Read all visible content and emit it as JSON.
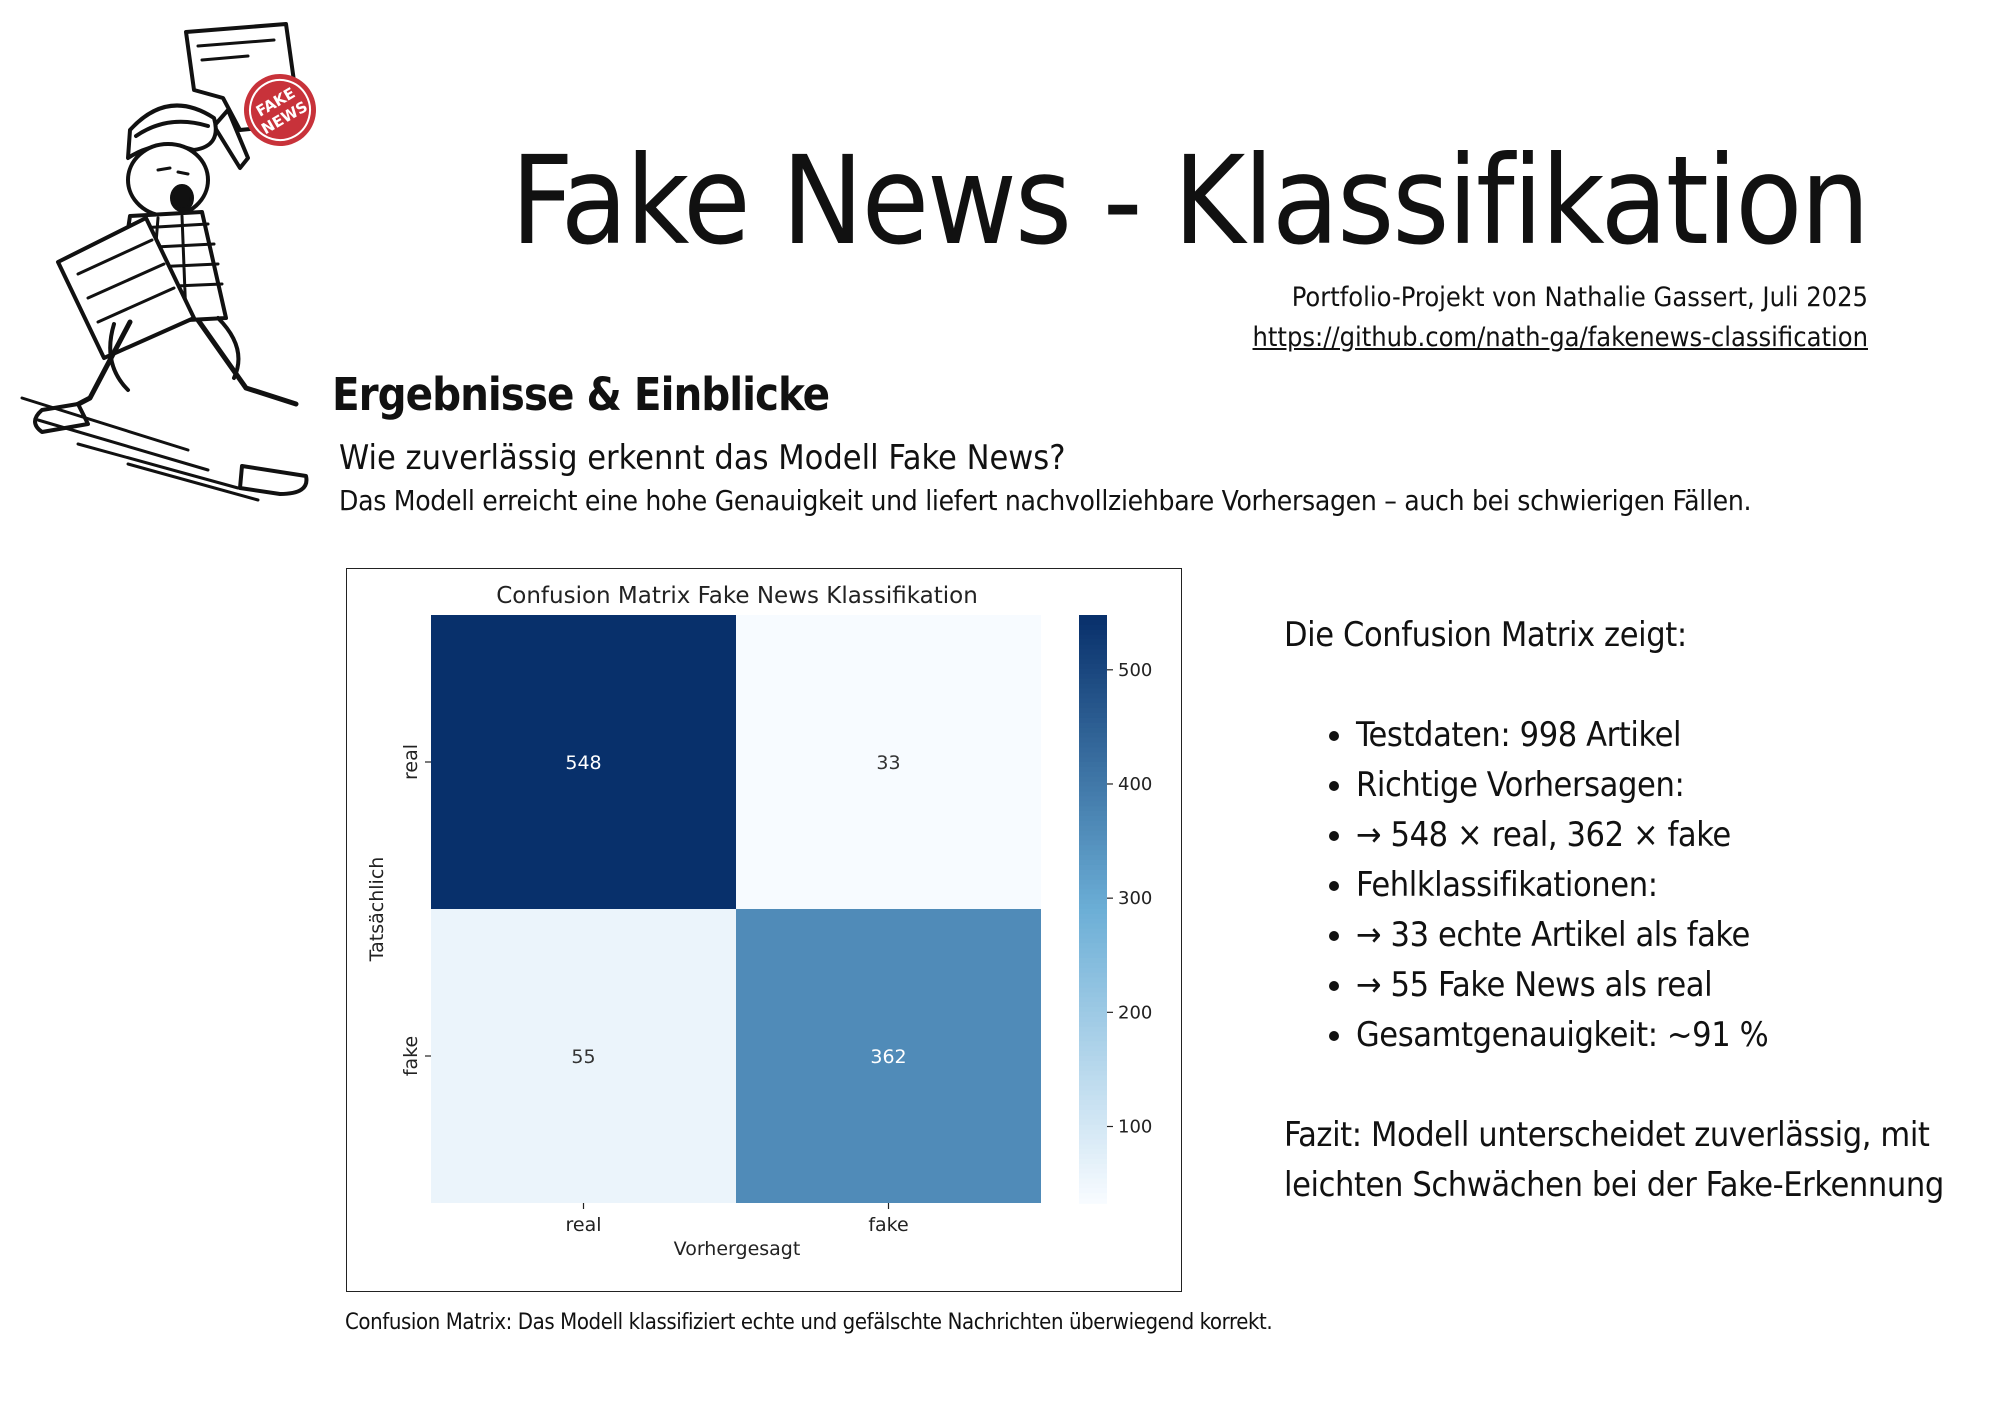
{
  "header": {
    "title": "Fake News - Klassifikation",
    "author": "Portfolio-Projekt von Nathalie Gassert, Juli 2025",
    "repo": "https://github.com/nath-ga/fakenews-classification"
  },
  "illustration": {
    "icon": "newsboy-illustration-icon",
    "stamp_text": "FAKE NEWS",
    "colors": {
      "ink": "#111111",
      "stamp": "#c8323a"
    }
  },
  "section": {
    "heading": "Ergebnisse & Einblicke",
    "question": "Wie zuverlässig erkennt das Modell Fake News?",
    "lead": "Das Modell erreicht eine hohe Genauigkeit und liefert nachvollziehbare Vorhersagen – auch bei schwierigen Fällen."
  },
  "figure": {
    "caption": "Confusion Matrix: Das Modell klassifiziert echte und gefälschte Nachrichten überwiegend korrekt."
  },
  "chart_data": {
    "type": "heatmap",
    "title": "Confusion Matrix Fake News Klassifikation",
    "xlabel": "Vorhergesagt",
    "ylabel": "Tatsächlich",
    "x_categories": [
      "real",
      "fake"
    ],
    "y_categories": [
      "real",
      "fake"
    ],
    "values": [
      [
        548,
        33
      ],
      [
        55,
        362
      ]
    ],
    "colormap": "Blues",
    "colorbar": {
      "min": 33,
      "max": 548,
      "ticks": [
        100,
        200,
        300,
        400,
        500
      ]
    },
    "colors": {
      "low": "#f7fbff",
      "mid": "#6baed6",
      "high": "#08306b"
    }
  },
  "summary": {
    "intro": "Die Confusion Matrix zeigt:",
    "bullets": [
      "Testdaten: 998 Artikel",
      "Richtige Vorhersagen:",
      " → 548 × real, 362 × fake",
      "Fehlklassifikationen:",
      " → 33 echte Artikel als fake",
      " → 55 Fake News als real",
      "Gesamtgenauigkeit: ~91 %"
    ],
    "conclusion": "Fazit: Modell unterscheidet zuverlässig, mit leichten Schwächen bei der Fake-Erkennung"
  }
}
